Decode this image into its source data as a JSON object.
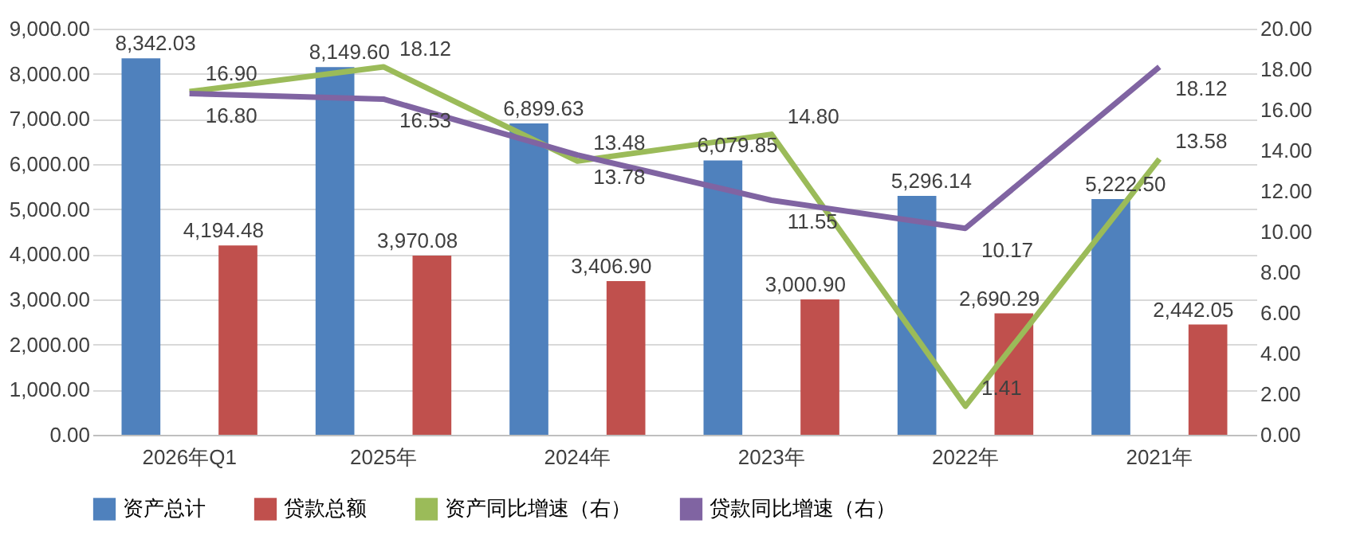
{
  "chart_data": {
    "type": "bar",
    "categories": [
      "2026年Q1",
      "2025年",
      "2024年",
      "2023年",
      "2022年",
      "2021年"
    ],
    "series": [
      {
        "name": "资产总计",
        "color": "#4f81bd",
        "values": [
          8342.03,
          8149.6,
          6899.63,
          6079.85,
          5296.14,
          5222.5
        ],
        "value_labels": [
          "8,342.03",
          "8,149.60",
          "6,899.63",
          "6,079.85",
          "5,296.14",
          "5,222.50"
        ]
      },
      {
        "name": "贷款总额",
        "color": "#c0504d",
        "values": [
          4194.48,
          3970.08,
          3406.9,
          3000.9,
          2690.29,
          2442.05
        ],
        "value_labels": [
          "4,194.48",
          "3,970.08",
          "3,406.90",
          "3,000.90",
          "2,690.29",
          "2,442.05"
        ]
      },
      {
        "name": "资产同比增速（右）",
        "type": "line",
        "axis": "y2",
        "color": "#9bbb59",
        "values": [
          16.9,
          18.12,
          13.48,
          14.8,
          1.41,
          13.58
        ],
        "value_labels": [
          "16.90",
          "18.12",
          "13.48",
          "14.80",
          "1.41",
          "13.58"
        ]
      },
      {
        "name": "贷款同比增速（右）",
        "type": "line",
        "axis": "y2",
        "color": "#8064a2",
        "values": [
          16.8,
          16.53,
          13.78,
          11.55,
          10.17,
          18.12
        ],
        "value_labels": [
          "16.80",
          "16.53",
          "13.78",
          "11.55",
          "10.17",
          "18.12"
        ]
      }
    ],
    "ylim": [
      0,
      9000
    ],
    "yticks": [
      {
        "value": 0,
        "label": "0.00"
      },
      {
        "value": 1000,
        "label": "1,000.00"
      },
      {
        "value": 2000,
        "label": "2,000.00"
      },
      {
        "value": 3000,
        "label": "3,000.00"
      },
      {
        "value": 4000,
        "label": "4,000.00"
      },
      {
        "value": 5000,
        "label": "5,000.00"
      },
      {
        "value": 6000,
        "label": "6,000.00"
      },
      {
        "value": 7000,
        "label": "7,000.00"
      },
      {
        "value": 8000,
        "label": "8,000.00"
      },
      {
        "value": 9000,
        "label": "9,000.00"
      }
    ],
    "y2lim": [
      0,
      20
    ],
    "y2ticks": [
      {
        "value": 0,
        "label": "0.00"
      },
      {
        "value": 2,
        "label": "2.00"
      },
      {
        "value": 4,
        "label": "4.00"
      },
      {
        "value": 6,
        "label": "6.00"
      },
      {
        "value": 8,
        "label": "8.00"
      },
      {
        "value": 10,
        "label": "10.00"
      },
      {
        "value": 12,
        "label": "12.00"
      },
      {
        "value": 14,
        "label": "14.00"
      },
      {
        "value": 16,
        "label": "16.00"
      },
      {
        "value": 18,
        "label": "18.00"
      },
      {
        "value": 20,
        "label": "20.00"
      }
    ],
    "grid": "y",
    "legend": "bottom",
    "marker": "none"
  }
}
